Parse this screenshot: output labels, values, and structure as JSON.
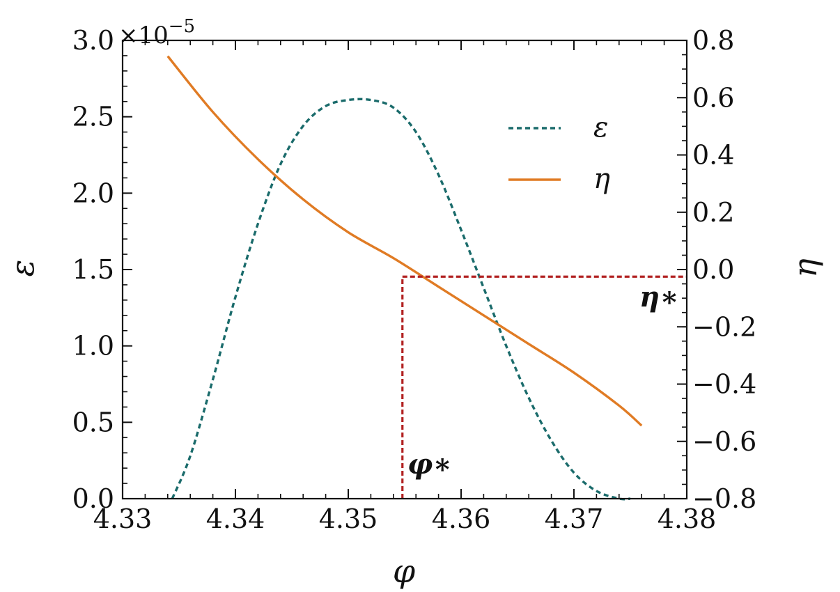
{
  "chart_data": {
    "type": "line",
    "title": "",
    "xlabel": "φ",
    "ylabel_left": "ε",
    "ylabel_right": "η",
    "xlim": [
      4.33,
      4.38
    ],
    "ylim_left": [
      0.0,
      3e-05
    ],
    "ylim_right": [
      -0.8,
      0.8
    ],
    "x_ticks": [
      4.33,
      4.34,
      4.35,
      4.36,
      4.37,
      4.38
    ],
    "x_tick_labels": [
      "4.33",
      "4.34",
      "4.35",
      "4.36",
      "4.37",
      "4.38"
    ],
    "y_left_ticks": [
      0.0,
      0.5,
      1.0,
      1.5,
      2.0,
      2.5,
      3.0
    ],
    "y_left_tick_labels": [
      "0.0",
      "0.5",
      "1.0",
      "1.5",
      "2.0",
      "2.5",
      "3.0"
    ],
    "y_left_scale_label": "×10",
    "y_left_scale_exponent": "−5",
    "y_right_ticks": [
      -0.8,
      -0.6,
      -0.4,
      -0.2,
      0.0,
      0.2,
      0.4,
      0.6,
      0.8
    ],
    "y_right_tick_labels": [
      "−0.8",
      "−0.6",
      "−0.4",
      "−0.2",
      "0.0",
      "0.2",
      "0.4",
      "0.6",
      "0.8"
    ],
    "grid": false,
    "legend_position": "top-right",
    "series": [
      {
        "name": "ε",
        "axis": "left",
        "style": "dashed",
        "color": "#1a6b6b",
        "x": [
          4.3344,
          4.336,
          4.338,
          4.34,
          4.342,
          4.344,
          4.346,
          4.348,
          4.35,
          4.352,
          4.354,
          4.356,
          4.358,
          4.36,
          4.362,
          4.364,
          4.366,
          4.368,
          4.37,
          4.372,
          4.374,
          4.375
        ],
        "y": [
          0.0,
          2.8e-06,
          7.8e-06,
          1.32e-05,
          1.8e-05,
          2.19e-05,
          2.44e-05,
          2.57e-05,
          2.61e-05,
          2.61e-05,
          2.56e-05,
          2.4e-05,
          2.12e-05,
          1.76e-05,
          1.38e-05,
          1e-05,
          6.6e-06,
          3.8e-06,
          1.7e-06,
          5e-07,
          0.0,
          0.0
        ]
      },
      {
        "name": "η",
        "axis": "right",
        "style": "solid",
        "color": "#e07b24",
        "x": [
          4.334,
          4.338,
          4.342,
          4.346,
          4.35,
          4.354,
          4.358,
          4.362,
          4.366,
          4.37,
          4.374,
          4.376
        ],
        "y": [
          0.745,
          0.55,
          0.385,
          0.245,
          0.13,
          0.04,
          -0.06,
          -0.16,
          -0.26,
          -0.36,
          -0.475,
          -0.545
        ]
      }
    ],
    "annotations": {
      "reference_color": "#b22222",
      "phi_star": {
        "label": "φ∗",
        "x": 4.3548
      },
      "eta_star": {
        "label": "η∗",
        "y": -0.025
      }
    }
  }
}
